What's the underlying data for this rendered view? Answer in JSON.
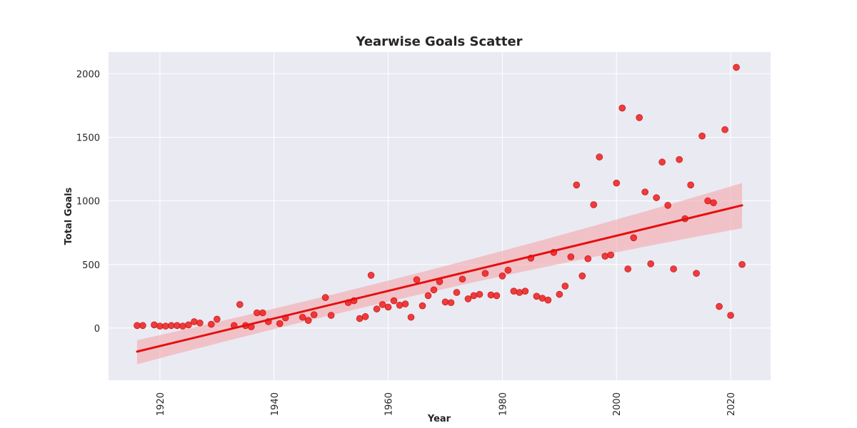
{
  "chart_data": {
    "type": "scatter",
    "title": "Yearwise Goals Scatter",
    "xlabel": "Year",
    "ylabel": "Total Goals",
    "xlim": [
      1911,
      2027
    ],
    "ylim": [
      -410,
      2170
    ],
    "xticks": [
      1920,
      1940,
      1960,
      1980,
      2000,
      2020
    ],
    "yticks": [
      0,
      500,
      1000,
      1500,
      2000
    ],
    "grid": true,
    "legend": "none",
    "colors": {
      "background": "#eaeaf2",
      "grid": "#ffffff",
      "point": "#ee1c1c",
      "line": "#e60f0f",
      "band": "#f4a0a6"
    },
    "series": [
      {
        "x": [
          1916,
          1917,
          1919,
          1920,
          1921,
          1922,
          1923,
          1924,
          1925,
          1926,
          1927,
          1929,
          1930,
          1933,
          1934,
          1935,
          1936,
          1937,
          1938,
          1939,
          1941,
          1942,
          1945,
          1946,
          1947,
          1949,
          1950,
          1953,
          1954,
          1955,
          1956,
          1957,
          1958,
          1959,
          1960,
          1961,
          1962,
          1963,
          1964,
          1965,
          1966,
          1967,
          1968,
          1969,
          1970,
          1971,
          1972,
          1973,
          1974,
          1975,
          1976,
          1977,
          1978,
          1979,
          1980,
          1981,
          1982,
          1983,
          1984,
          1985,
          1986,
          1987,
          1988,
          1989,
          1990,
          1991,
          1992,
          1993,
          1994,
          1995,
          1996,
          1997,
          1998,
          1999,
          2000,
          2001,
          2002,
          2003,
          2004,
          2005,
          2006,
          2007,
          2008,
          2009,
          2010,
          2011,
          2012,
          2013,
          2014,
          2015,
          2016,
          2017,
          2018,
          2019,
          2020,
          2021,
          2022
        ],
        "y": [
          20,
          20,
          25,
          15,
          15,
          20,
          20,
          15,
          25,
          50,
          40,
          30,
          70,
          20,
          185,
          20,
          10,
          120,
          120,
          50,
          35,
          80,
          85,
          60,
          105,
          240,
          100,
          200,
          215,
          75,
          90,
          415,
          150,
          185,
          165,
          215,
          180,
          190,
          85,
          380,
          175,
          255,
          300,
          365,
          205,
          200,
          280,
          385,
          230,
          255,
          265,
          430,
          260,
          255,
          410,
          455,
          290,
          280,
          290,
          550,
          250,
          235,
          220,
          595,
          265,
          330,
          560,
          1125,
          410,
          545,
          970,
          1345,
          565,
          575,
          1140,
          1730,
          465,
          710,
          1655,
          1070,
          505,
          1025,
          1305,
          965,
          465,
          1325,
          860,
          1125,
          430,
          1510,
          1000,
          985,
          170,
          1560,
          100,
          2050,
          500
        ]
      }
    ],
    "regression": {
      "x": [
        1916,
        2022
      ],
      "y": [
        -185,
        965
      ],
      "ci_upper_at_x_start": -95,
      "ci_lower_at_x_start": -285,
      "ci_upper_at_x_end": 1140,
      "ci_lower_at_x_end": 785
    }
  }
}
